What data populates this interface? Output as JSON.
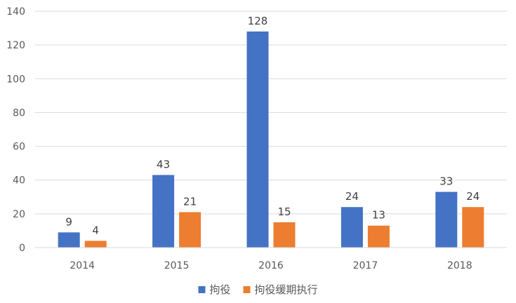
{
  "chart_data": {
    "type": "bar",
    "categories": [
      "2014",
      "2015",
      "2016",
      "2017",
      "2018"
    ],
    "series": [
      {
        "name": "拘役",
        "values": [
          9,
          43,
          128,
          24,
          33
        ],
        "color": "#4472C4"
      },
      {
        "name": "拘役缓期执行",
        "values": [
          4,
          21,
          15,
          13,
          24
        ],
        "color": "#ED7D31"
      }
    ],
    "ylim": [
      0,
      140
    ],
    "yticks": [
      0,
      20,
      40,
      60,
      80,
      100,
      120,
      140
    ],
    "grid": true,
    "legend_position": "bottom",
    "data_labels": true,
    "gridline_color": "#d9d9d9"
  }
}
